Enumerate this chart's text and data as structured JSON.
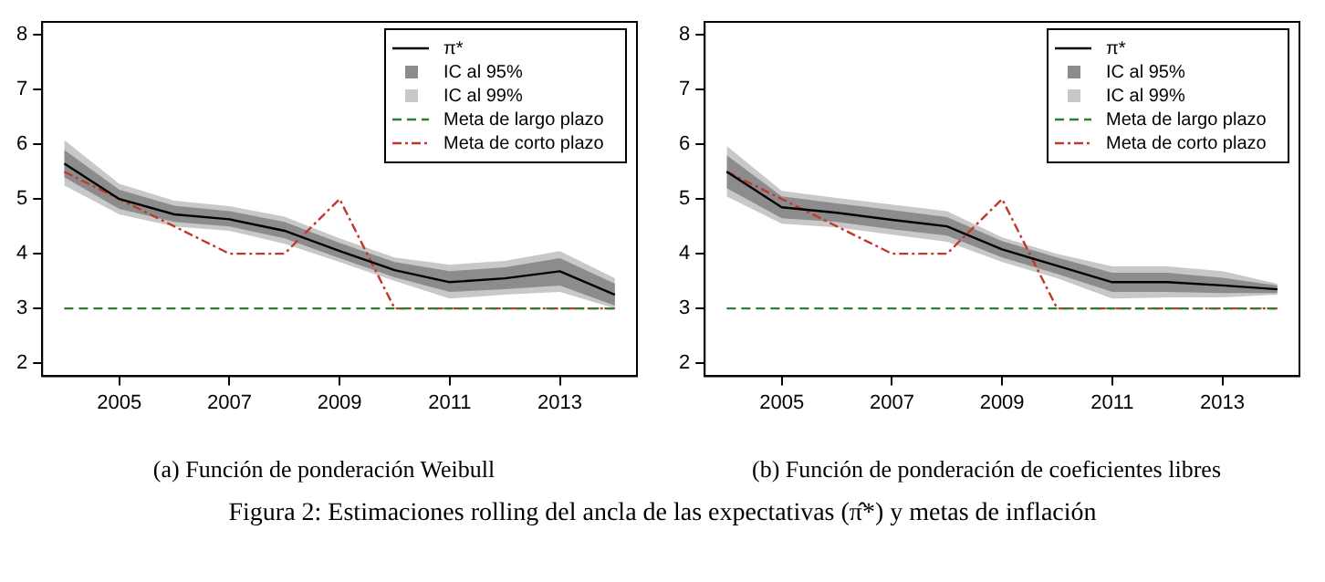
{
  "chart_data": [
    {
      "type": "line",
      "title": "(a) Función de ponderación Weibull",
      "x": [
        2004,
        2005,
        2006,
        2007,
        2008,
        2009,
        2010,
        2011,
        2012,
        2013,
        2014
      ],
      "xlim": [
        2003.6,
        2014.4
      ],
      "xticks": [
        2005,
        2007,
        2009,
        2011,
        2013
      ],
      "ylim": [
        1.76,
        8.24
      ],
      "yticks": [
        2,
        3,
        4,
        5,
        6,
        7,
        8
      ],
      "grid": false,
      "legend": "top right",
      "marker": "none",
      "series": [
        {
          "name": "π*",
          "color": "#000000",
          "values": [
            5.65,
            5.0,
            4.72,
            4.63,
            4.42,
            4.05,
            3.7,
            3.48,
            3.55,
            3.68,
            3.25
          ]
        },
        {
          "name": "IC al 95%",
          "color": "#8c8c8c",
          "values": [
            null,
            null,
            null,
            null,
            null,
            null,
            null,
            null,
            null,
            null,
            null
          ],
          "upper": [
            5.9,
            5.17,
            4.88,
            4.78,
            4.58,
            4.2,
            3.85,
            3.68,
            3.75,
            3.92,
            3.45
          ],
          "lower": [
            5.4,
            4.82,
            4.58,
            4.5,
            4.28,
            3.92,
            3.57,
            3.3,
            3.35,
            3.42,
            3.05
          ]
        },
        {
          "name": "IC al 99%",
          "color": "#c8c8c8",
          "values": [
            null,
            null,
            null,
            null,
            null,
            null,
            null,
            null,
            null,
            null,
            null
          ],
          "upper": [
            6.08,
            5.28,
            4.97,
            4.87,
            4.68,
            4.28,
            3.93,
            3.8,
            3.87,
            4.05,
            3.55
          ],
          "lower": [
            5.25,
            4.72,
            4.5,
            4.42,
            4.18,
            3.85,
            3.5,
            3.18,
            3.25,
            3.3,
            3.0
          ]
        },
        {
          "name": "Meta de largo plazo",
          "color": "#2e7d32",
          "line_style": "dashed",
          "values": [
            3,
            3,
            3,
            3,
            3,
            3,
            3,
            3,
            3,
            3,
            3
          ]
        },
        {
          "name": "Meta de corto plazo",
          "color": "#c0392b",
          "line_style": "dashdot",
          "values": [
            5.5,
            5.0,
            4.5,
            4.0,
            4.0,
            5.0,
            3.0,
            3.0,
            3.0,
            3.0,
            3.0
          ]
        }
      ],
      "annotations": [
        "Figura 2: Estimaciones rolling del ancla de las expectativas (π̂*) y metas de inflación"
      ]
    },
    {
      "type": "line",
      "title": "(b) Función de ponderación de coeficientes libres",
      "x": [
        2004,
        2005,
        2006,
        2007,
        2008,
        2009,
        2010,
        2011,
        2012,
        2013,
        2014
      ],
      "xlim": [
        2003.6,
        2014.4
      ],
      "xticks": [
        2005,
        2007,
        2009,
        2011,
        2013
      ],
      "ylim": [
        1.76,
        8.24
      ],
      "yticks": [
        2,
        3,
        4,
        5,
        6,
        7,
        8
      ],
      "grid": false,
      "legend": "top right",
      "marker": "none",
      "series": [
        {
          "name": "π*",
          "color": "#000000",
          "values": [
            5.5,
            4.85,
            4.75,
            4.62,
            4.5,
            4.08,
            3.78,
            3.48,
            3.48,
            3.42,
            3.35
          ]
        },
        {
          "name": "IC al 95%",
          "color": "#8c8c8c",
          "values": [
            null,
            null,
            null,
            null,
            null,
            null,
            null,
            null,
            null,
            null,
            null
          ],
          "upper": [
            5.8,
            5.05,
            4.92,
            4.8,
            4.67,
            4.23,
            3.93,
            3.65,
            3.65,
            3.56,
            3.42
          ],
          "lower": [
            5.2,
            4.65,
            4.58,
            4.45,
            4.33,
            3.93,
            3.63,
            3.3,
            3.3,
            3.28,
            3.28
          ]
        },
        {
          "name": "IC al 99%",
          "color": "#c8c8c8",
          "values": [
            null,
            null,
            null,
            null,
            null,
            null,
            null,
            null,
            null,
            null,
            null
          ],
          "upper": [
            5.97,
            5.15,
            5.02,
            4.9,
            4.78,
            4.3,
            4.0,
            3.77,
            3.77,
            3.68,
            3.45
          ],
          "lower": [
            5.05,
            4.55,
            4.48,
            4.35,
            4.22,
            3.85,
            3.55,
            3.18,
            3.2,
            3.2,
            3.25
          ]
        },
        {
          "name": "Meta de largo plazo",
          "color": "#2e7d32",
          "line_style": "dashed",
          "values": [
            3,
            3,
            3,
            3,
            3,
            3,
            3,
            3,
            3,
            3,
            3
          ]
        },
        {
          "name": "Meta de corto plazo",
          "color": "#c0392b",
          "line_style": "dashdot",
          "values": [
            5.5,
            5.0,
            4.5,
            4.0,
            4.0,
            5.0,
            3.0,
            3.0,
            3.0,
            3.0,
            3.0
          ]
        }
      ]
    }
  ]
}
